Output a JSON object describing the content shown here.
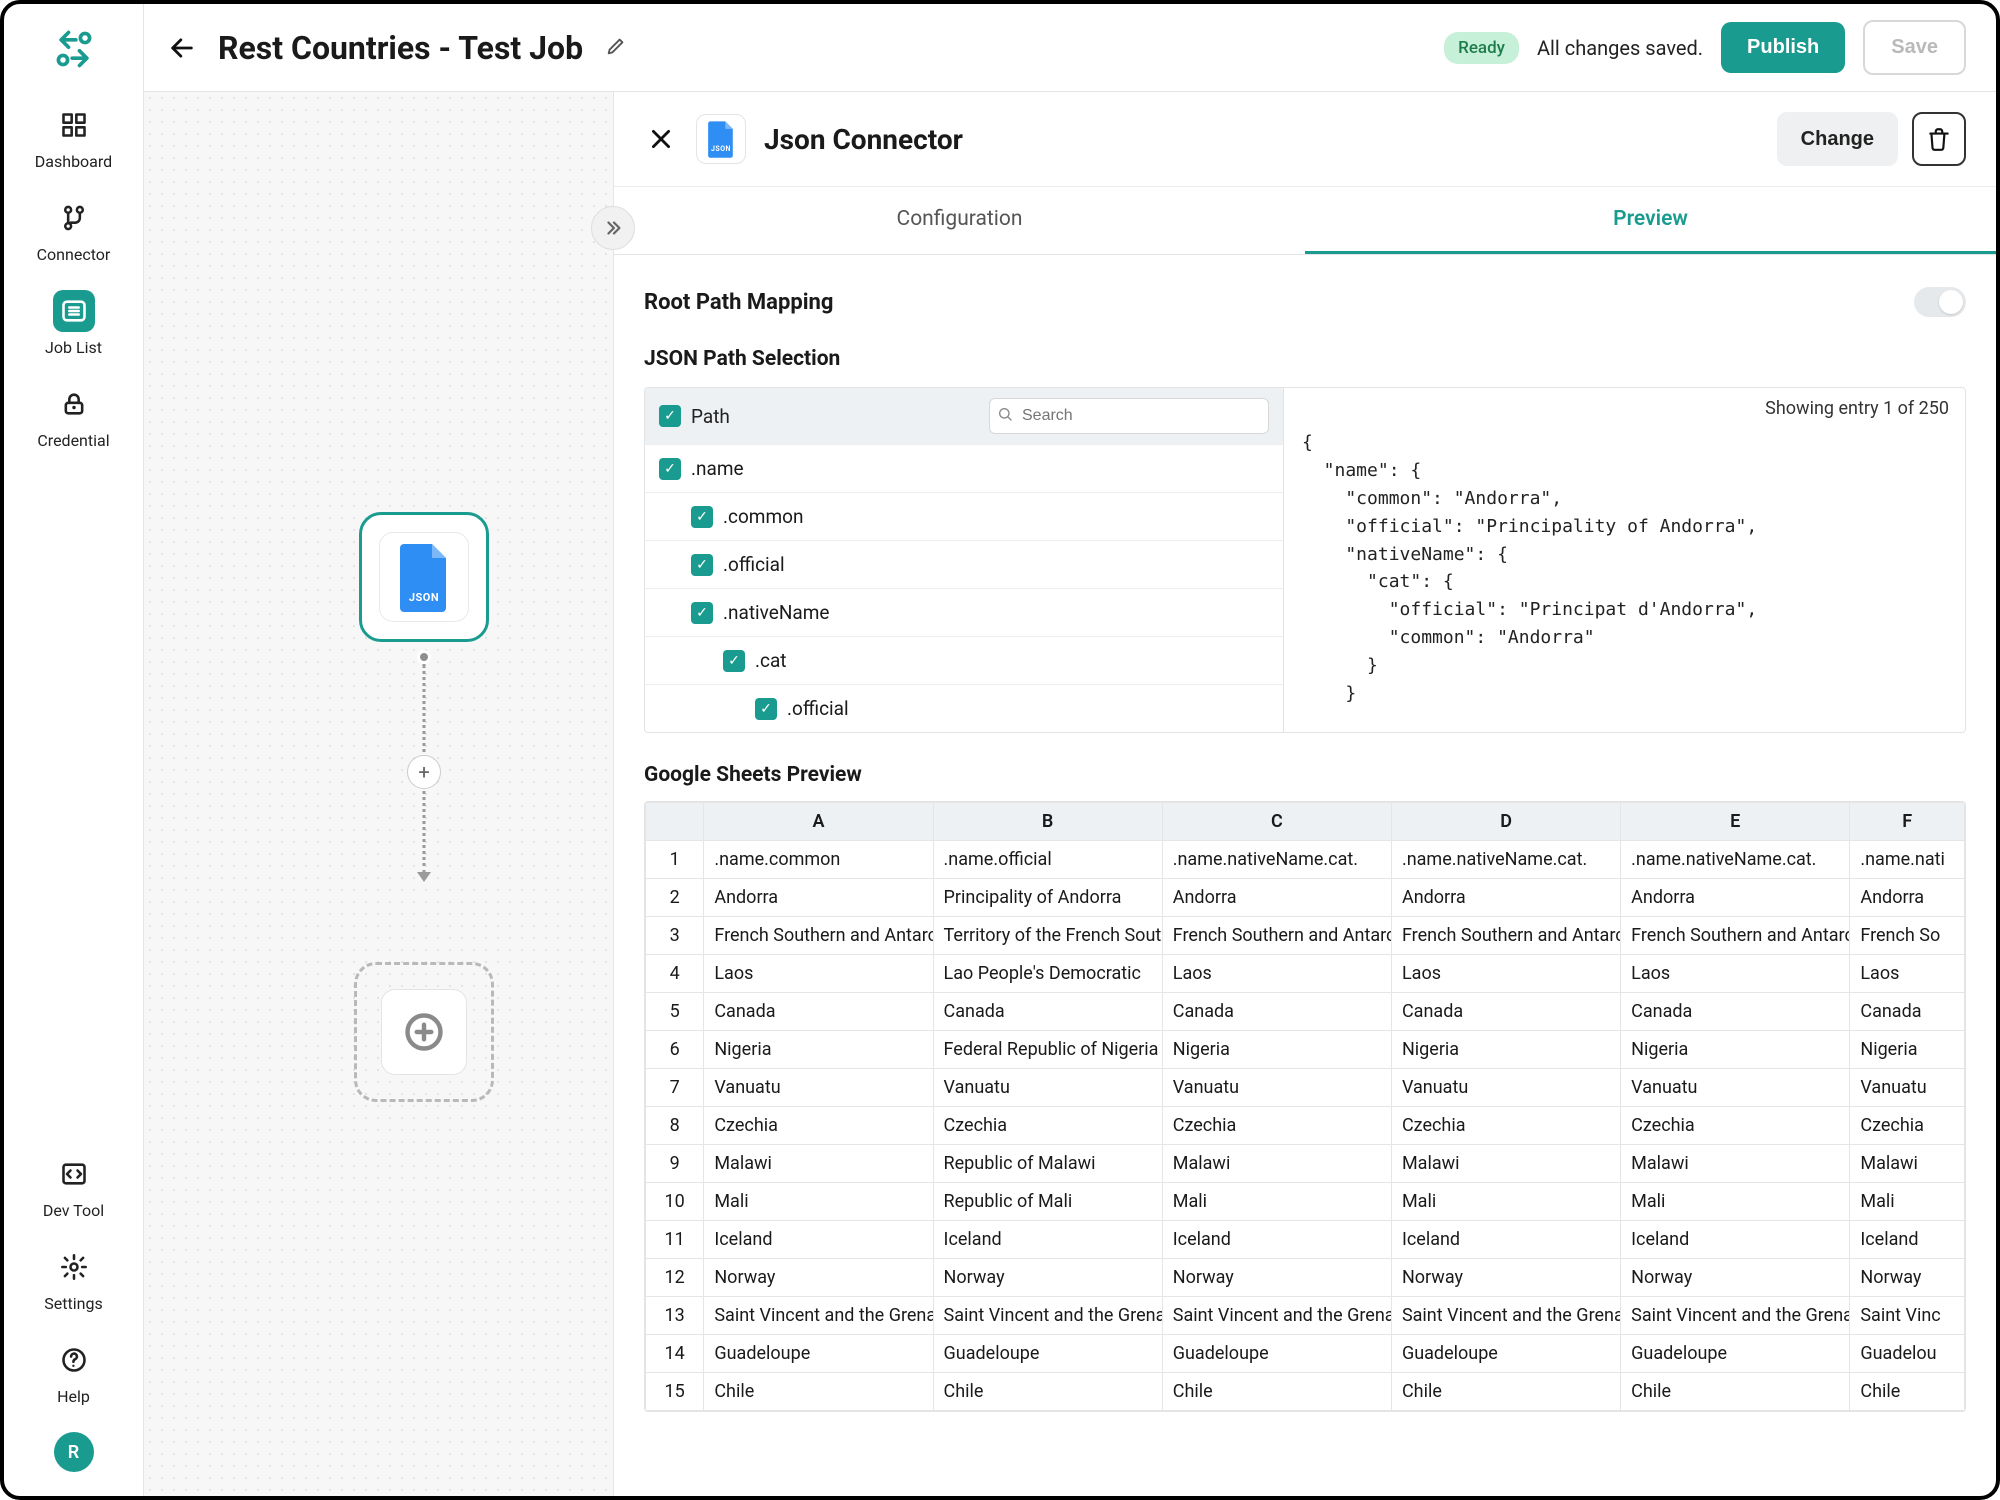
{
  "colors": {
    "accent": "#1a9b8f",
    "badge_bg": "#c7f0d8",
    "badge_text": "#1e7d4b",
    "border": "#e5e5e5",
    "canvas_dot": "#dcdcdc"
  },
  "sidebar": {
    "items": [
      {
        "id": "dashboard",
        "label": "Dashboard",
        "icon": "grid"
      },
      {
        "id": "connector",
        "label": "Connector",
        "icon": "git"
      },
      {
        "id": "job-list",
        "label": "Job List",
        "icon": "list",
        "active": true
      },
      {
        "id": "credential",
        "label": "Credential",
        "icon": "lock"
      }
    ],
    "bottom": [
      {
        "id": "dev-tool",
        "label": "Dev Tool",
        "icon": "brackets"
      },
      {
        "id": "settings",
        "label": "Settings",
        "icon": "gear"
      },
      {
        "id": "help",
        "label": "Help",
        "icon": "question"
      }
    ],
    "avatar_initial": "R"
  },
  "topbar": {
    "title": "Rest Countries - Test Job",
    "status_badge": "Ready",
    "saved_text": "All changes saved.",
    "publish_label": "Publish",
    "save_label": "Save"
  },
  "canvas": {
    "node_label": "JSON"
  },
  "panel": {
    "title": "Json Connector",
    "change_label": "Change",
    "tabs": {
      "configuration": "Configuration",
      "preview": "Preview",
      "active": "preview"
    },
    "root_path_label": "Root Path Mapping",
    "root_path_on": false,
    "json_path_title": "JSON Path Selection",
    "path_header_label": "Path",
    "search_placeholder": "Search",
    "paths": [
      {
        "label": ".name",
        "indent": 0,
        "checked": true
      },
      {
        "label": ".common",
        "indent": 1,
        "checked": true
      },
      {
        "label": ".official",
        "indent": 1,
        "checked": true
      },
      {
        "label": ".nativeName",
        "indent": 1,
        "checked": true
      },
      {
        "label": ".cat",
        "indent": 2,
        "checked": true
      },
      {
        "label": ".official",
        "indent": 3,
        "checked": true
      }
    ],
    "entry_count_text": "Showing entry 1 of 250",
    "json_sample": "{\n  \"name\": {\n    \"common\": \"Andorra\",\n    \"official\": \"Principality of Andorra\",\n    \"nativeName\": {\n      \"cat\": {\n        \"official\": \"Principat d'Andorra\",\n        \"common\": \"Andorra\"\n      }\n    }",
    "sheets_title": "Google Sheets Preview",
    "sheet": {
      "columns": [
        "A",
        "B",
        "C",
        "D",
        "E",
        "F"
      ],
      "rows": [
        [
          ".name.common",
          ".name.official",
          ".name.nativeName.cat.",
          ".name.nativeName.cat.",
          ".name.nativeName.cat.",
          ".name.nati"
        ],
        [
          "Andorra",
          "Principality of Andorra",
          "Andorra",
          "Andorra",
          "Andorra",
          "Andorra"
        ],
        [
          "French Southern and Antarctic Lands",
          "Territory of the French Southern",
          "French Southern and Antarctic",
          "French Southern and Antarctic",
          "French Southern and Antarctic",
          "French So"
        ],
        [
          "Laos",
          "Lao People's Democratic",
          "Laos",
          "Laos",
          "Laos",
          "Laos"
        ],
        [
          "Canada",
          "Canada",
          "Canada",
          "Canada",
          "Canada",
          "Canada"
        ],
        [
          "Nigeria",
          "Federal Republic of Nigeria",
          "Nigeria",
          "Nigeria",
          "Nigeria",
          "Nigeria"
        ],
        [
          "Vanuatu",
          "Vanuatu",
          "Vanuatu",
          "Vanuatu",
          "Vanuatu",
          "Vanuatu"
        ],
        [
          "Czechia",
          "Czechia",
          "Czechia",
          "Czechia",
          "Czechia",
          "Czechia"
        ],
        [
          "Malawi",
          "Republic of Malawi",
          "Malawi",
          "Malawi",
          "Malawi",
          "Malawi"
        ],
        [
          "Mali",
          "Republic of Mali",
          "Mali",
          "Mali",
          "Mali",
          "Mali"
        ],
        [
          "Iceland",
          "Iceland",
          "Iceland",
          "Iceland",
          "Iceland",
          "Iceland"
        ],
        [
          "Norway",
          "Norway",
          "Norway",
          "Norway",
          "Norway",
          "Norway"
        ],
        [
          "Saint Vincent and the Grenadines",
          "Saint Vincent and the Grenadines",
          "Saint Vincent and the Grenadines",
          "Saint Vincent and the Grenadines",
          "Saint Vincent and the Grenadines",
          "Saint Vinc"
        ],
        [
          "Guadeloupe",
          "Guadeloupe",
          "Guadeloupe",
          "Guadeloupe",
          "Guadeloupe",
          "Guadelou"
        ],
        [
          "Chile",
          "Chile",
          "Chile",
          "Chile",
          "Chile",
          "Chile"
        ]
      ]
    }
  }
}
